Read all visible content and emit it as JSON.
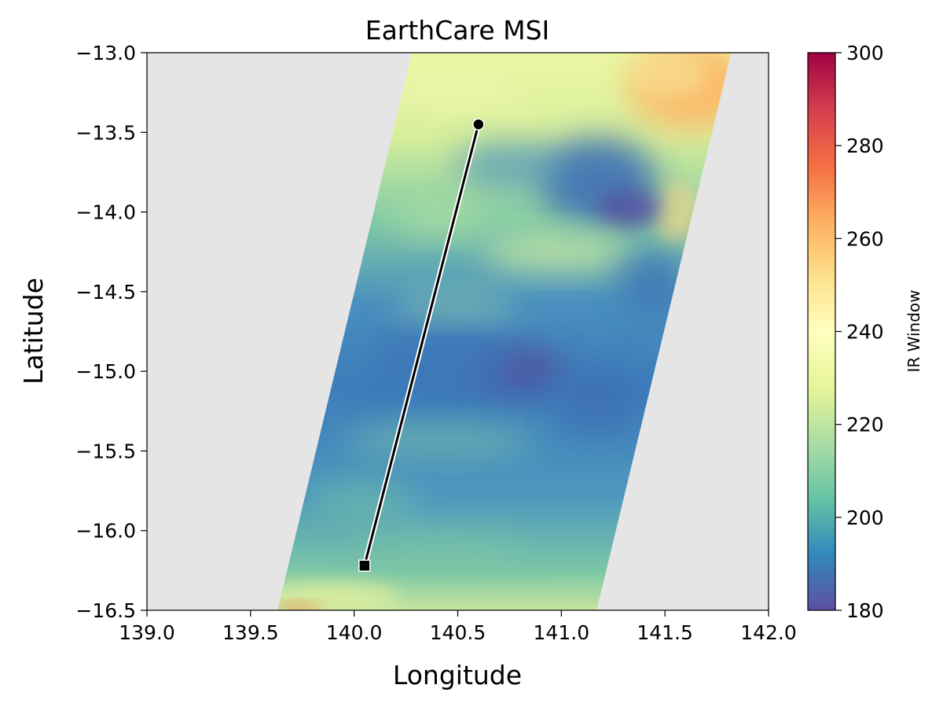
{
  "chart_data": {
    "type": "heatmap",
    "title": "EarthCare MSI",
    "xlabel": "Longitude",
    "ylabel": "Latitude",
    "xlim": [
      139.0,
      142.0
    ],
    "ylim": [
      -16.5,
      -13.0
    ],
    "xticks": [
      "139.0",
      "139.5",
      "140.0",
      "140.5",
      "141.0",
      "141.5",
      "142.0"
    ],
    "yticks": [
      "-13.0",
      "-13.5",
      "-14.0",
      "-14.5",
      "-15.0",
      "-15.5",
      "-16.0",
      "-16.5"
    ],
    "grid": false,
    "background_color": "#e5e5e5",
    "colormap": "Spectral_r",
    "colorbar": {
      "label": "IR Window",
      "range": [
        180,
        300
      ],
      "ticks": [
        "180",
        "200",
        "220",
        "240",
        "260",
        "280",
        "300"
      ]
    },
    "swath_corners": [
      {
        "lon": 139.63,
        "lat": -16.5
      },
      {
        "lon": 141.17,
        "lat": -16.5
      },
      {
        "lon": 141.82,
        "lat": -13.0
      },
      {
        "lon": 140.28,
        "lat": -13.0
      }
    ],
    "track": {
      "start": {
        "lon": 140.6,
        "lat": -13.45,
        "marker": "circle"
      },
      "end": {
        "lon": 140.05,
        "lat": -16.22,
        "marker": "square"
      },
      "color": "#000000",
      "outline": "#ffffff"
    },
    "colors": {
      "cold_deep": "#5e4fa2",
      "cold": "#3288bd",
      "mid": "#66c2a5",
      "cool": "#abdda4",
      "neutral": "#ffffbf",
      "warm": "#fdae61",
      "hot": "#f46d43",
      "max": "#9e0142"
    }
  }
}
